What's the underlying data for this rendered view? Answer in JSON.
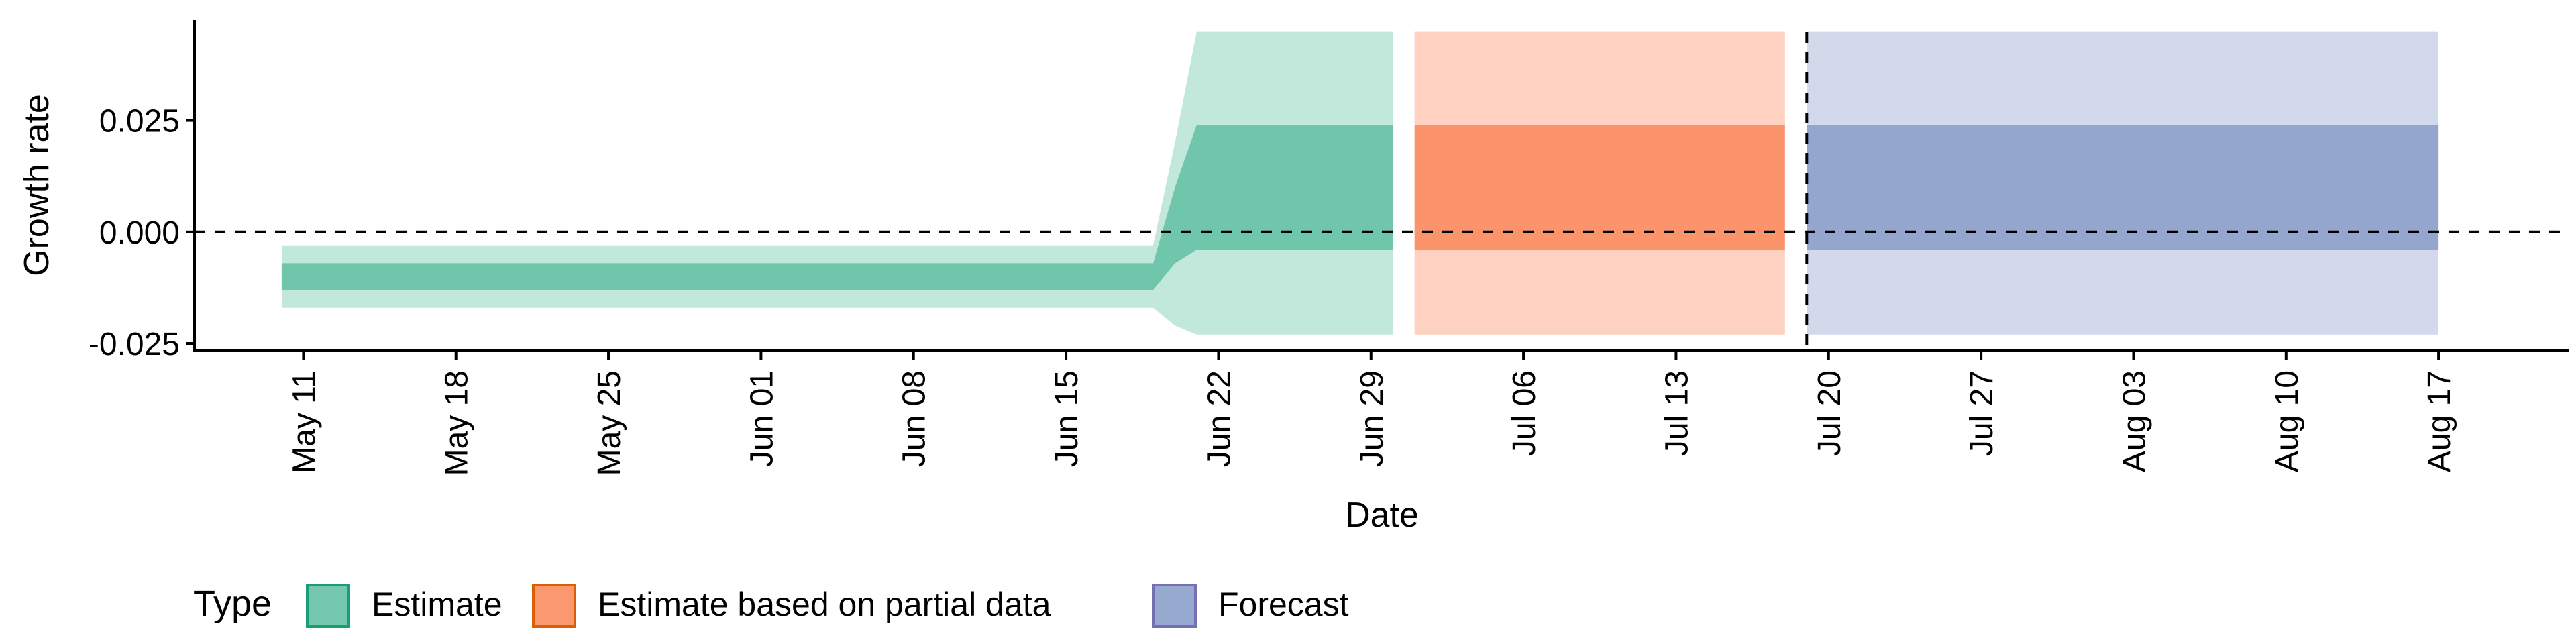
{
  "chart_data": {
    "type": "area",
    "xlabel": "Date",
    "ylabel": "Growth rate",
    "ylim": [
      -0.0265,
      0.0475
    ],
    "xlim": [
      "2020-05-06",
      "2020-08-23"
    ],
    "y_ticks": [
      -0.025,
      0.0,
      0.025
    ],
    "y_tick_labels": [
      "-0.025",
      "0.000",
      "0.025"
    ],
    "x_ticks": [
      "2020-05-11",
      "2020-05-18",
      "2020-05-25",
      "2020-06-01",
      "2020-06-08",
      "2020-06-15",
      "2020-06-22",
      "2020-06-29",
      "2020-07-06",
      "2020-07-13",
      "2020-07-20",
      "2020-07-27",
      "2020-08-03",
      "2020-08-10",
      "2020-08-17"
    ],
    "x_tick_labels": [
      "May 11",
      "May 18",
      "May 25",
      "Jun 01",
      "Jun 08",
      "Jun 15",
      "Jun 22",
      "Jun 29",
      "Jul 06",
      "Jul 13",
      "Jul 20",
      "Jul 27",
      "Aug 03",
      "Aug 10",
      "Aug 17"
    ],
    "reference_lines": {
      "y_hline": 0.0,
      "x_vline": "2020-07-19"
    },
    "grid": false,
    "legend": {
      "title": "Type",
      "placement": "bottom-left",
      "entries": [
        {
          "name": "Estimate",
          "fill": "#66C2A5",
          "border": "#1B9E77"
        },
        {
          "name": "Estimate based on partial data",
          "fill": "#FC8D62",
          "border": "#D95F02"
        },
        {
          "name": "Forecast",
          "fill": "#8DA0CB",
          "border": "#7570B3"
        }
      ]
    },
    "series": [
      {
        "name": "Estimate",
        "color": "#1B9E77",
        "x": [
          "2020-05-10",
          "2020-06-19",
          "2020-06-20",
          "2020-06-21",
          "2020-06-30"
        ],
        "lower_90": [
          -0.017,
          -0.017,
          -0.021,
          -0.023,
          -0.023
        ],
        "upper_90": [
          -0.003,
          -0.003,
          0.02,
          0.045,
          0.045
        ],
        "lower_50": [
          -0.013,
          -0.013,
          -0.007,
          -0.004,
          -0.004
        ],
        "upper_50": [
          -0.007,
          -0.007,
          0.01,
          0.024,
          0.024
        ]
      },
      {
        "name": "Estimate based on partial data",
        "color": "#D95F02",
        "x": [
          "2020-07-01",
          "2020-07-18"
        ],
        "lower_90": [
          -0.023,
          -0.023
        ],
        "upper_90": [
          0.045,
          0.045
        ],
        "lower_50": [
          -0.004,
          -0.004
        ],
        "upper_50": [
          0.024,
          0.024
        ]
      },
      {
        "name": "Forecast",
        "color": "#7570B3",
        "x": [
          "2020-07-19",
          "2020-08-17"
        ],
        "lower_90": [
          -0.023,
          -0.023
        ],
        "upper_90": [
          0.045,
          0.045
        ],
        "lower_50": [
          -0.004,
          -0.004
        ],
        "upper_50": [
          0.024,
          0.024
        ]
      }
    ]
  }
}
